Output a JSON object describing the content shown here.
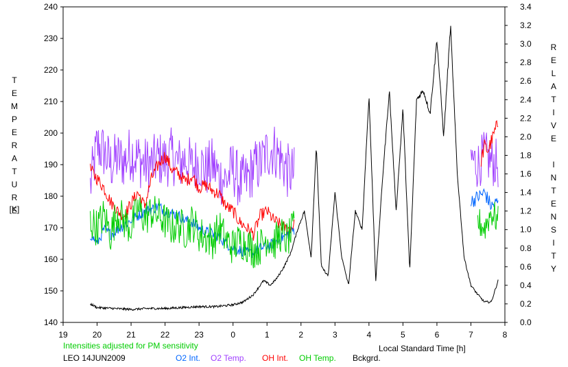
{
  "chart_data": {
    "type": "line",
    "left_axis": {
      "label": "TEMPERATURE",
      "unit": "[K]",
      "range": [
        140,
        240
      ],
      "ticks": [
        140,
        150,
        160,
        170,
        180,
        190,
        200,
        210,
        220,
        230,
        240
      ]
    },
    "right_axis": {
      "label": "RELATIVE INTENSITY",
      "range": [
        0,
        3.4
      ],
      "ticks": [
        "0.0",
        "0.2",
        "0.4",
        "0.6",
        "0.8",
        "1.0",
        "1.2",
        "1.4",
        "1.6",
        "1.8",
        "2.0",
        "2.2",
        "2.4",
        "2.6",
        "2.8",
        "3.0",
        "3.2",
        "3.4"
      ]
    },
    "x_axis": {
      "label": "Local Standard Time [h]",
      "range": [
        19,
        32
      ],
      "tick_labels": [
        "19",
        "20",
        "21",
        "22",
        "23",
        "0",
        "1",
        "2",
        "3",
        "4",
        "5",
        "6",
        "7",
        "8"
      ]
    },
    "note": "Intensities adjusted for PM sensitivity",
    "station": "LEO 14JUN2009",
    "legend": [
      {
        "name": "O2 Int.",
        "color": "#0066ff"
      },
      {
        "name": "O2 Temp.",
        "color": "#a040ff"
      },
      {
        "name": "OH Int.",
        "color": "#ff0000"
      },
      {
        "name": "OH Temp.",
        "color": "#00cc00"
      },
      {
        "name": "Bckgrd.",
        "color": "#000000"
      }
    ],
    "series": [
      {
        "name": "O2 Temp.",
        "axis": "left",
        "color": "#a040ff",
        "segments": [
          {
            "x": [
              19.8,
              20.0,
              20.2,
              20.4,
              20.6,
              20.8,
              21.0,
              21.2,
              21.4,
              21.6,
              21.8,
              22.0,
              22.2,
              22.4,
              22.6,
              22.8,
              23.0,
              23.2,
              23.4,
              23.6,
              23.8,
              24.0,
              24.2,
              24.4,
              24.6,
              24.8,
              25.0,
              25.2,
              25.4,
              25.6,
              25.8
            ],
            "y": [
              183,
              196,
              194,
              190,
              192,
              191,
              194,
              192,
              190,
              190,
              192,
              191,
              193,
              190,
              192,
              189,
              191,
              188,
              190,
              186,
              185,
              189,
              184,
              185,
              189,
              190,
              194,
              195,
              192,
              188,
              187
            ],
            "amp": 9
          },
          {
            "x": [
              31.0,
              31.2,
              31.4,
              31.6,
              31.8
            ],
            "y": [
              192,
              190,
              193,
              191,
              190
            ],
            "amp": 8
          }
        ]
      },
      {
        "name": "OH Int.",
        "axis": "right",
        "color": "#ff0000",
        "segments": [
          {
            "x": [
              19.8,
              20.0,
              20.2,
              20.4,
              20.6,
              20.8,
              21.0,
              21.2,
              21.4,
              21.6,
              21.8,
              22.0,
              22.2,
              22.4,
              22.6,
              22.8,
              23.0,
              23.2,
              23.4,
              23.6,
              23.8,
              24.0,
              24.2,
              24.4,
              24.6,
              24.8,
              25.0,
              25.2,
              25.4,
              25.6,
              25.8
            ],
            "y": [
              1.65,
              1.55,
              1.45,
              1.3,
              1.2,
              1.15,
              1.28,
              1.4,
              1.25,
              1.55,
              1.7,
              1.8,
              1.65,
              1.6,
              1.52,
              1.58,
              1.45,
              1.48,
              1.42,
              1.38,
              1.25,
              1.2,
              1.08,
              1.02,
              0.95,
              1.15,
              1.2,
              1.1,
              1.05,
              1.0,
              1.05
            ],
            "amp": 0.07
          },
          {
            "x": [
              31.3,
              31.4,
              31.5,
              31.6,
              31.7,
              31.8
            ],
            "y": [
              1.75,
              1.9,
              1.85,
              1.95,
              2.05,
              2.15
            ],
            "amp": 0.08
          }
        ]
      },
      {
        "name": "O2 Int.",
        "axis": "right",
        "color": "#0066ff",
        "segments": [
          {
            "x": [
              19.8,
              20.0,
              20.2,
              20.4,
              20.6,
              20.8,
              21.0,
              21.2,
              21.4,
              21.6,
              21.8,
              22.0,
              22.2,
              22.4,
              22.6,
              22.8,
              23.0,
              23.2,
              23.4,
              23.6,
              23.8,
              24.0,
              24.2,
              24.4,
              24.6,
              24.8,
              25.0,
              25.2,
              25.4,
              25.6,
              25.8
            ],
            "y": [
              0.95,
              0.85,
              1.0,
              0.95,
              1.0,
              1.05,
              1.1,
              1.15,
              1.2,
              1.22,
              1.25,
              1.2,
              1.18,
              1.15,
              1.1,
              1.08,
              1.02,
              0.98,
              0.95,
              0.92,
              0.85,
              0.8,
              0.78,
              0.75,
              0.75,
              0.8,
              0.82,
              0.85,
              0.9,
              0.95,
              1.0
            ],
            "amp": 0.06
          },
          {
            "x": [
              31.0,
              31.2,
              31.4,
              31.6,
              31.8
            ],
            "y": [
              1.3,
              1.35,
              1.4,
              1.25,
              1.3
            ],
            "amp": 0.08
          }
        ]
      },
      {
        "name": "OH Temp.",
        "axis": "left",
        "color": "#00cc00",
        "segments": [
          {
            "x": [
              19.8,
              20.0,
              20.2,
              20.4,
              20.6,
              20.8,
              21.0,
              21.2,
              21.4,
              21.6,
              21.8,
              22.0,
              22.2,
              22.4,
              22.6,
              22.8,
              23.0,
              23.2,
              23.4,
              23.6,
              23.8,
              24.0,
              24.2,
              24.4,
              24.6,
              24.8,
              25.0,
              25.2,
              25.4,
              25.6,
              25.8
            ],
            "y": [
              172,
              170,
              174,
              168,
              175,
              172,
              170,
              176,
              173,
              175,
              174,
              172,
              170,
              171,
              169,
              172,
              168,
              167,
              166,
              170,
              166,
              164,
              166,
              165,
              163,
              164,
              167,
              165,
              168,
              166,
              170
            ],
            "amp": 6
          },
          {
            "x": [
              31.2,
              31.4,
              31.6,
              31.8
            ],
            "y": [
              172,
              170,
              175,
              172
            ],
            "amp": 5
          }
        ]
      },
      {
        "name": "Bckgrd.",
        "axis": "right",
        "color": "#000000",
        "segments": [
          {
            "x": [
              19.8,
              20.0,
              20.5,
              21.0,
              21.5,
              22.0,
              22.5,
              23.0,
              23.5,
              24.0,
              24.3,
              24.6,
              24.9,
              25.1,
              25.3,
              25.5,
              25.7,
              25.9,
              26.1,
              26.3,
              26.45,
              26.6,
              26.8,
              27.0,
              27.2,
              27.4,
              27.6,
              27.8,
              28.0,
              28.2,
              28.4,
              28.6,
              28.8,
              29.0,
              29.2,
              29.4,
              29.6,
              29.8,
              30.0,
              30.2,
              30.4,
              30.6,
              30.8,
              31.0,
              31.2,
              31.4,
              31.6,
              31.8
            ],
            "y": [
              0.2,
              0.16,
              0.15,
              0.14,
              0.15,
              0.15,
              0.16,
              0.17,
              0.17,
              0.19,
              0.22,
              0.3,
              0.45,
              0.4,
              0.48,
              0.6,
              0.75,
              1.0,
              1.2,
              0.7,
              1.9,
              0.6,
              0.5,
              1.4,
              0.7,
              0.4,
              1.2,
              1.0,
              2.45,
              0.45,
              1.55,
              2.5,
              1.2,
              2.3,
              0.55,
              2.4,
              2.5,
              2.25,
              3.05,
              2.0,
              3.2,
              1.6,
              0.7,
              0.4,
              0.3,
              0.22,
              0.22,
              0.45
            ],
            "amp": 0
          }
        ]
      }
    ]
  }
}
